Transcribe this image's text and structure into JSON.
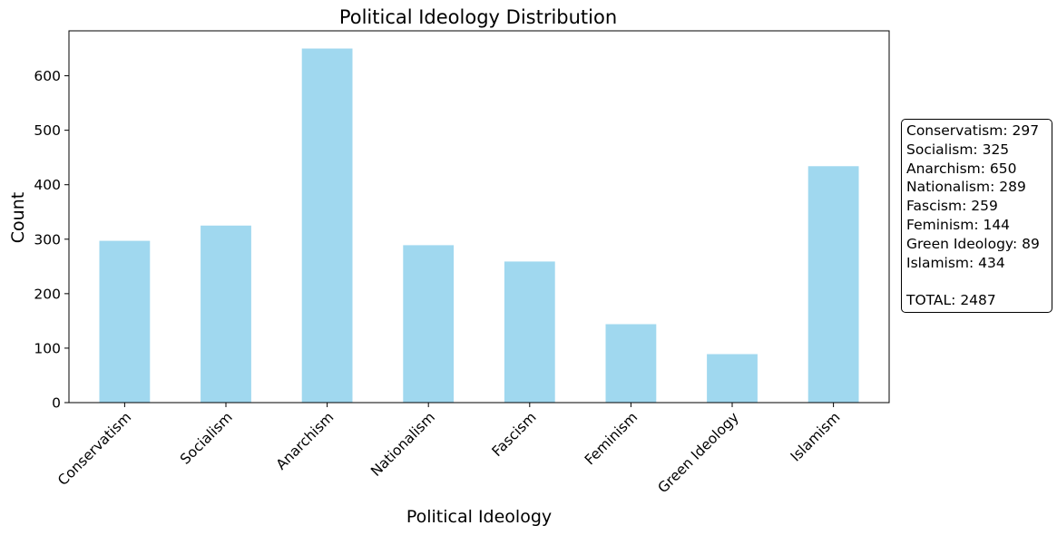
{
  "chart_data": {
    "type": "bar",
    "title": "Political Ideology Distribution",
    "xlabel": "Political Ideology",
    "ylabel": "Count",
    "categories": [
      "Conservatism",
      "Socialism",
      "Anarchism",
      "Nationalism",
      "Fascism",
      "Feminism",
      "Green Ideology",
      "Islamism"
    ],
    "values": [
      297,
      325,
      650,
      289,
      259,
      144,
      89,
      434
    ],
    "ylim": [
      0,
      682.5
    ],
    "yticks": [
      0,
      100,
      200,
      300,
      400,
      500,
      600
    ],
    "bar_color": "#a0d8ef",
    "grid": false,
    "legend": "none"
  },
  "summary": {
    "lines": [
      "Conservatism: 297",
      "Socialism: 325",
      "Anarchism: 650",
      "Nationalism: 289",
      "Fascism: 259",
      "Feminism: 144",
      "Green Ideology: 89",
      "Islamism: 434"
    ],
    "total": "TOTAL: 2487"
  }
}
